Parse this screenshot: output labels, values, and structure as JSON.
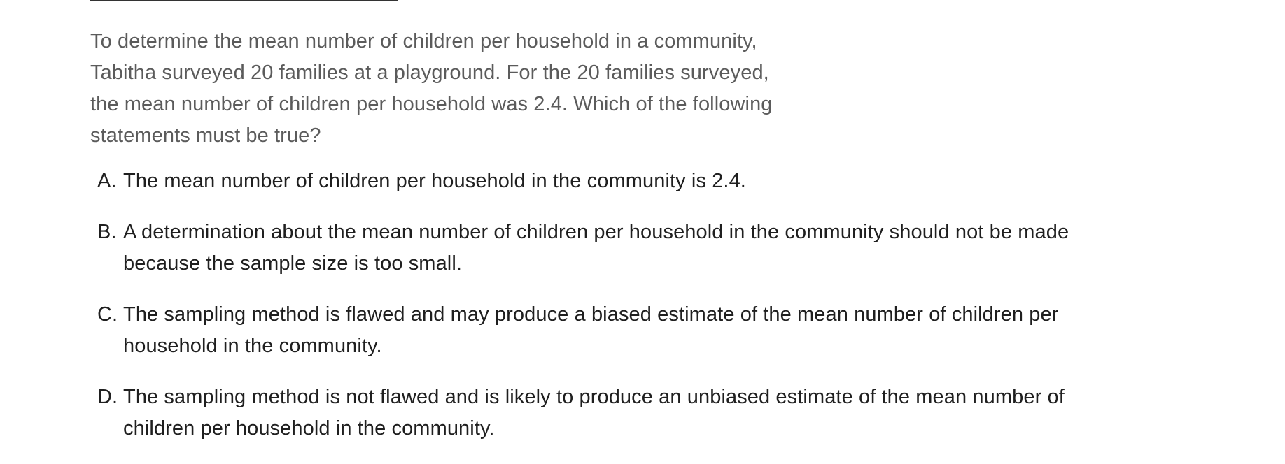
{
  "question": {
    "lines": [
      "To determine the mean number of children per household in a community,",
      "Tabitha surveyed 20 families at a playground. For the 20 families surveyed,",
      "the mean number of children per household was 2.4. Which of the following",
      "statements must be true?"
    ]
  },
  "choices": [
    {
      "letter": "A.",
      "lines": [
        "The mean number of children per household in the community is 2.4."
      ]
    },
    {
      "letter": "B.",
      "lines": [
        "A determination about the mean number of children per household in the community should not be made",
        "because the sample size is too small."
      ]
    },
    {
      "letter": "C.",
      "lines": [
        "The sampling method is flawed and may produce a biased estimate of the mean number of children per",
        "household in the community."
      ]
    },
    {
      "letter": "D.",
      "lines": [
        "The sampling method is not flawed and is likely to produce an unbiased estimate of the mean number of",
        "children per household in the community."
      ]
    }
  ]
}
